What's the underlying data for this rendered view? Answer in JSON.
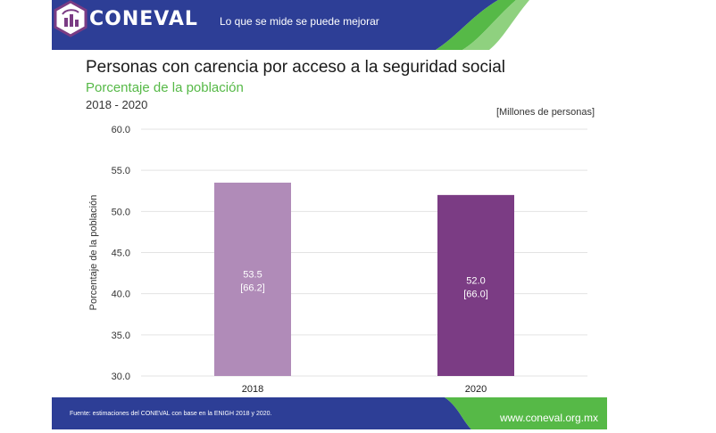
{
  "header": {
    "logo": "CONEVAL",
    "tagline": "Lo que se mide se puede mejorar",
    "badge_icon": "coneval-hexagon-icon"
  },
  "heading": {
    "title": "Personas con carencia por acceso a la seguridad social",
    "subtitle": "Porcentaje de la población",
    "years": "2018 - 2020",
    "units": "[Millones de personas]"
  },
  "colors": {
    "header_blue": "#2d3e96",
    "accent_green": "#56b947",
    "bar_2018": "#b08bb8",
    "bar_2020": "#7b3c84"
  },
  "chart_data": {
    "type": "bar",
    "ylabel": "Porcentaje de la población",
    "xlabel": "",
    "ylim": [
      30,
      60
    ],
    "yticks": [
      "60.0",
      "55.0",
      "50.0",
      "45.0",
      "40.0",
      "35.0",
      "30.0"
    ],
    "grid": true,
    "categories": [
      "2018",
      "2020"
    ],
    "values": [
      53.5,
      52.0
    ],
    "value_labels": [
      "53.5",
      "52.0"
    ],
    "millions_labels": [
      "[66.2]",
      "[66.0]"
    ]
  },
  "footer": {
    "source": "Fuente: estimaciones del CONEVAL con base en la ENIGH 2018 y 2020.",
    "url": "www.coneval.org.mx"
  }
}
